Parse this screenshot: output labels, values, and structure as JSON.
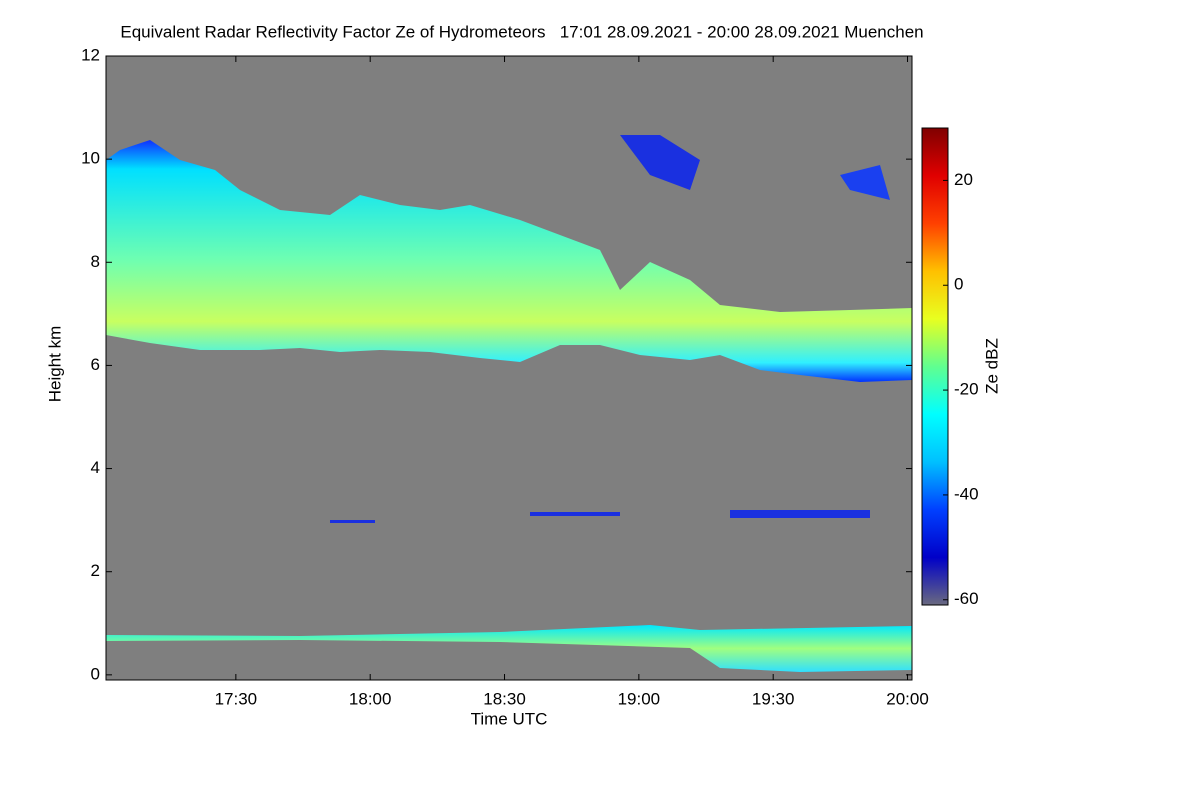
{
  "chart_data": {
    "type": "heatmap",
    "title": "Equivalent Radar Reflectivity Factor Ze of Hydrometeors   17:01 28.09.2021 - 20:00 28.09.2021 Muenchen",
    "x_label": "Time UTC",
    "y_label": "Height km",
    "colorbar_label": "Ze dBZ",
    "xlim": [
      1021,
      1201
    ],
    "xticks": [
      {
        "value": 1050,
        "label": "17:30"
      },
      {
        "value": 1080,
        "label": "18:00"
      },
      {
        "value": 1110,
        "label": "18:30"
      },
      {
        "value": 1140,
        "label": "19:00"
      },
      {
        "value": 1170,
        "label": "19:30"
      },
      {
        "value": 1200,
        "label": "20:00"
      }
    ],
    "ylim": [
      -0.1,
      12
    ],
    "yticks": [
      0,
      2,
      4,
      6,
      8,
      10,
      12
    ],
    "clim": [
      -61,
      30
    ],
    "cticks": [
      -60,
      -40,
      -20,
      0,
      20
    ],
    "background": "#7f7f7f",
    "colormap": [
      "#6a6a80",
      "#0000c8",
      "#0040ff",
      "#00c0ff",
      "#00ffff",
      "#60ff90",
      "#e8ff20",
      "#ffc000",
      "#ff4000",
      "#e00000",
      "#800000"
    ]
  }
}
